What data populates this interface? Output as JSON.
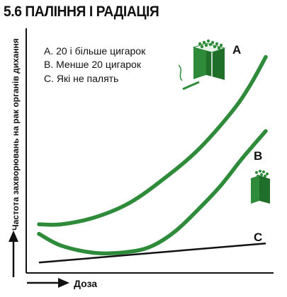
{
  "title": "5.6 ПАЛІННЯ І РАДІАЦІЯ",
  "chart_data": {
    "type": "line",
    "xlabel": "Доза",
    "ylabel": "Частота захворювань на рак органів дихання",
    "legend": [
      "A. 20 і більше цигарок",
      "B. Менше 20 цигарок",
      "C. Які не палять"
    ],
    "series": [
      {
        "name": "A",
        "x": [
          0,
          0.1,
          0.25,
          0.4,
          0.55,
          0.7,
          0.85,
          0.93,
          1.0
        ],
        "y": [
          0.18,
          0.18,
          0.21,
          0.27,
          0.37,
          0.49,
          0.65,
          0.76,
          0.88
        ]
      },
      {
        "name": "B",
        "x": [
          0,
          0.1,
          0.25,
          0.4,
          0.5,
          0.6,
          0.7,
          0.8,
          0.9,
          1.0
        ],
        "y": [
          0.14,
          0.09,
          0.06,
          0.065,
          0.09,
          0.15,
          0.24,
          0.34,
          0.46,
          0.57
        ]
      },
      {
        "name": "C",
        "x": [
          0,
          1.0
        ],
        "y": [
          0.02,
          0.1
        ]
      }
    ],
    "xlim": [
      0,
      1
    ],
    "ylim": [
      0,
      1
    ],
    "line_color": "#2e8b3a",
    "axis_color": "#111111"
  }
}
